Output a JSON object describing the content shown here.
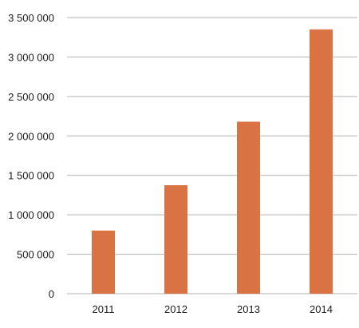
{
  "chart_data": {
    "type": "bar",
    "title": "",
    "xlabel": "",
    "ylabel": "",
    "categories": [
      "2011",
      "2012",
      "2013",
      "2014"
    ],
    "values": [
      800000,
      1375000,
      2180000,
      3350000
    ],
    "ylim": [
      0,
      3500000
    ],
    "ytick_step": 500000,
    "ytick_labels": [
      "0",
      "500 000",
      "1 000 000",
      "1 500 000",
      "2 000 000",
      "2 500 000",
      "3 000 000",
      "3 500 000"
    ],
    "grid": true,
    "legend": "none",
    "bar_color": "#d97343"
  }
}
